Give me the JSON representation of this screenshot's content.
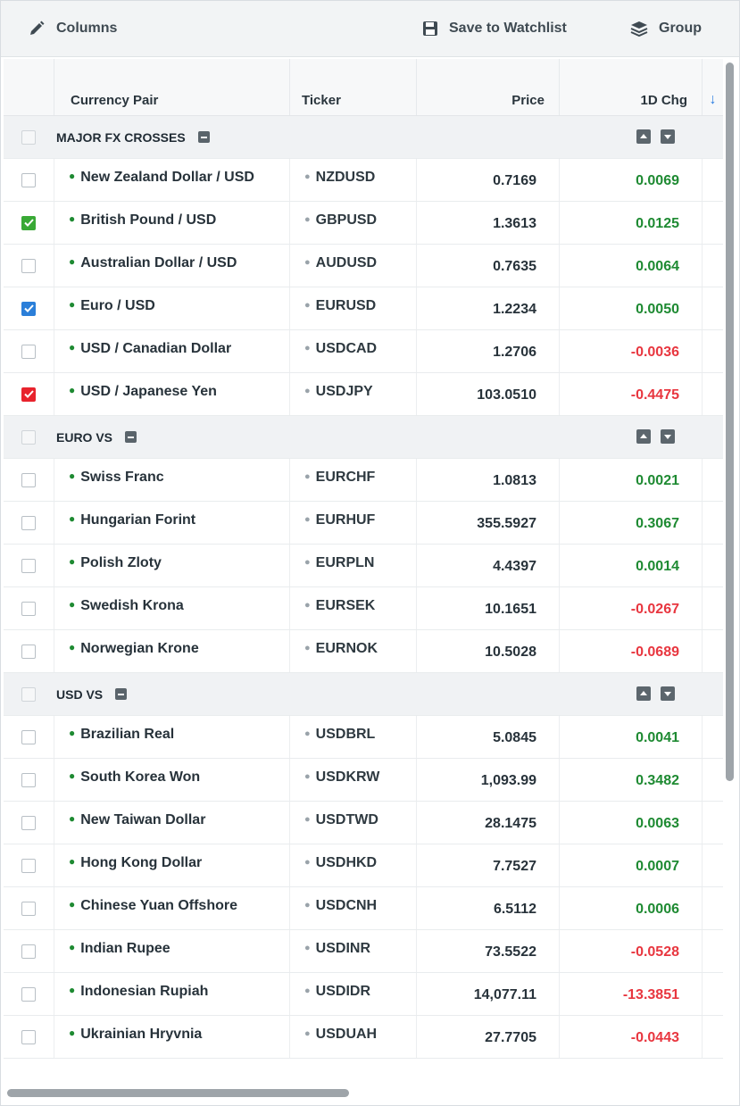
{
  "toolbar": {
    "columns_label": "Columns",
    "save_label": "Save to Watchlist",
    "group_label": "Group"
  },
  "columns": {
    "pair": "Currency Pair",
    "ticker": "Ticker",
    "price": "Price",
    "change": "1D Chg",
    "sort_indicator": "↓"
  },
  "colors": {
    "positive": "#1e8a32",
    "negative": "#e8363f",
    "check_green": "#39a935",
    "check_blue": "#2b7fd9",
    "check_red": "#e8232d"
  },
  "groups": [
    {
      "label": "MAJOR FX CROSSES",
      "rows": [
        {
          "pair": "New Zealand Dollar / USD",
          "ticker": "NZDUSD",
          "price": "0.7169",
          "change": "0.0069",
          "checked": "none"
        },
        {
          "pair": "British Pound / USD",
          "ticker": "GBPUSD",
          "price": "1.3613",
          "change": "0.0125",
          "checked": "green"
        },
        {
          "pair": "Australian Dollar / USD",
          "ticker": "AUDUSD",
          "price": "0.7635",
          "change": "0.0064",
          "checked": "none"
        },
        {
          "pair": "Euro / USD",
          "ticker": "EURUSD",
          "price": "1.2234",
          "change": "0.0050",
          "checked": "blue"
        },
        {
          "pair": "USD / Canadian Dollar",
          "ticker": "USDCAD",
          "price": "1.2706",
          "change": "-0.0036",
          "checked": "none"
        },
        {
          "pair": "USD / Japanese Yen",
          "ticker": "USDJPY",
          "price": "103.0510",
          "change": "-0.4475",
          "checked": "red"
        }
      ]
    },
    {
      "label": "EURO VS",
      "rows": [
        {
          "pair": "Swiss Franc",
          "ticker": "EURCHF",
          "price": "1.0813",
          "change": "0.0021",
          "checked": "none"
        },
        {
          "pair": "Hungarian Forint",
          "ticker": "EURHUF",
          "price": "355.5927",
          "change": "0.3067",
          "checked": "none"
        },
        {
          "pair": "Polish Zloty",
          "ticker": "EURPLN",
          "price": "4.4397",
          "change": "0.0014",
          "checked": "none"
        },
        {
          "pair": "Swedish Krona",
          "ticker": "EURSEK",
          "price": "10.1651",
          "change": "-0.0267",
          "checked": "none"
        },
        {
          "pair": "Norwegian Krone",
          "ticker": "EURNOK",
          "price": "10.5028",
          "change": "-0.0689",
          "checked": "none"
        }
      ]
    },
    {
      "label": "USD VS",
      "rows": [
        {
          "pair": "Brazilian Real",
          "ticker": "USDBRL",
          "price": "5.0845",
          "change": "0.0041",
          "checked": "none"
        },
        {
          "pair": "South Korea Won",
          "ticker": "USDKRW",
          "price": "1,093.99",
          "change": "0.3482",
          "checked": "none"
        },
        {
          "pair": "New Taiwan Dollar",
          "ticker": "USDTWD",
          "price": "28.1475",
          "change": "0.0063",
          "checked": "none"
        },
        {
          "pair": "Hong Kong Dollar",
          "ticker": "USDHKD",
          "price": "7.7527",
          "change": "0.0007",
          "checked": "none"
        },
        {
          "pair": "Chinese Yuan Offshore",
          "ticker": "USDCNH",
          "price": "6.5112",
          "change": "0.0006",
          "checked": "none"
        },
        {
          "pair": "Indian Rupee",
          "ticker": "USDINR",
          "price": "73.5522",
          "change": "-0.0528",
          "checked": "none"
        },
        {
          "pair": "Indonesian Rupiah",
          "ticker": "USDIDR",
          "price": "14,077.11",
          "change": "-13.3851",
          "checked": "none"
        },
        {
          "pair": "Ukrainian Hryvnia",
          "ticker": "USDUAH",
          "price": "27.7705",
          "change": "-0.0443",
          "checked": "none"
        }
      ]
    }
  ]
}
